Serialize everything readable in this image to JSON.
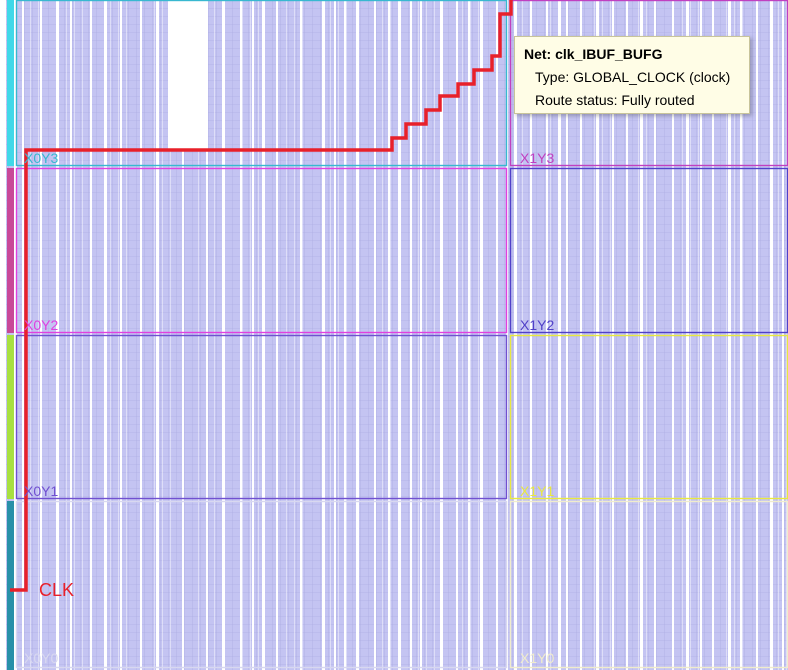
{
  "device_view": {
    "net_label": "CLK",
    "colors": {
      "fabric_fill": "#c4c4f2",
      "grid_line": "#a6a6de",
      "column_gap": "#ffffff",
      "route": "#e8202a"
    },
    "clock_regions": [
      {
        "name": "X0Y3",
        "color": "#38b8d0"
      },
      {
        "name": "X1Y3",
        "color": "#c040c0"
      },
      {
        "name": "X0Y2",
        "color": "#e040e0"
      },
      {
        "name": "X1Y2",
        "color": "#5040c8"
      },
      {
        "name": "X0Y1",
        "color": "#7050d0"
      },
      {
        "name": "X1Y1",
        "color": "#e8e840"
      },
      {
        "name": "X0Y0",
        "color": "#d8d8f0"
      },
      {
        "name": "X1Y0",
        "color": "#f0eccc"
      }
    ],
    "region_bar_colors": [
      "#40d8e8",
      "#c84898",
      "#a8e040",
      "#2890a8"
    ]
  },
  "tooltip": {
    "title": "Net: clk_IBUF_BUFG",
    "type_line": "Type: GLOBAL_CLOCK (clock)",
    "status_line": "Route status: Fully routed"
  }
}
